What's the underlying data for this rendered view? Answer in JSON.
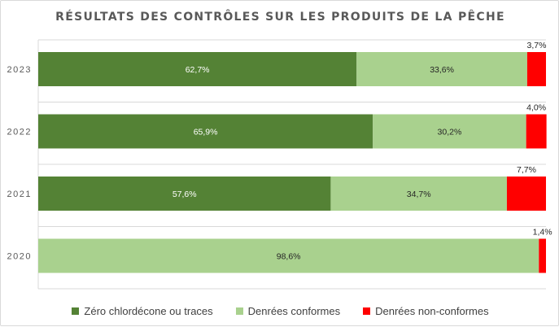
{
  "chart_data": {
    "type": "bar",
    "orientation": "horizontal",
    "stacked": true,
    "title": "RÉSULTATS DES CONTRÔLES SUR LES PRODUITS DE LA PÊCHE",
    "categories": [
      "2023",
      "2022",
      "2021",
      "2020"
    ],
    "value_labels": [
      "62,7%",
      "33,6%",
      "3,7%",
      "65,9%",
      "30,2%",
      "4,0%",
      "57,6%",
      "34,7%",
      "7,7%",
      "98,6%",
      "1,4%"
    ],
    "series": [
      {
        "name": "Zéro chlordécone ou traces",
        "color": "#548235",
        "values": [
          62.7,
          65.9,
          57.6,
          0
        ]
      },
      {
        "name": "Denrées conformes",
        "color": "#a9d18e",
        "values": [
          33.6,
          30.2,
          34.7,
          98.6
        ]
      },
      {
        "name": "Denrées non-conformes",
        "color": "#ff0000",
        "values": [
          3.7,
          4.0,
          7.7,
          1.4
        ]
      }
    ],
    "xlim": [
      0,
      100
    ],
    "grid": "horizontal",
    "legend_position": "bottom"
  }
}
